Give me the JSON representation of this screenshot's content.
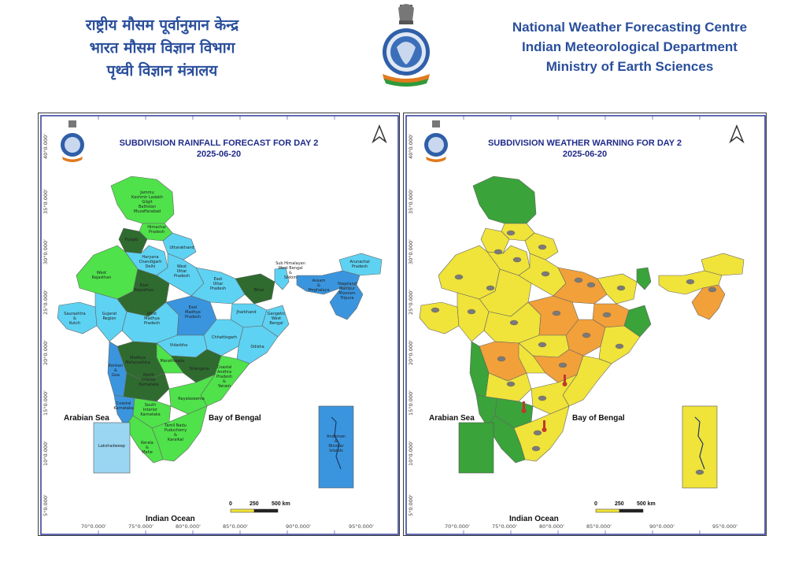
{
  "header": {
    "hindi_lines": [
      "राष्ट्रीय मौसम पूर्वानुमान केन्द्र",
      "भारत मौसम विज्ञान विभाग",
      "पृथ्वी विज्ञान मंत्रालय"
    ],
    "english_lines": [
      "National Weather Forecasting Centre",
      "Indian Meteorological Department",
      "Ministry of Earth Sciences"
    ]
  },
  "colors": {
    "title_blue": "#1f2a8a",
    "header_blue": "#2a4f9c",
    "light_green": "#4fe24a",
    "dark_green": "#2f6b2f",
    "light_blue": "#5ed2f2",
    "medium_blue": "#3a95de",
    "yellow": "#f0e33a",
    "orange": "#f2a03a",
    "warning_green": "#3aa33a"
  },
  "left_map": {
    "title": "SUBDIVISION RAINFALL FORECAST FOR DAY 2",
    "date": "2025-06-20",
    "arabian_sea": "Arabian Sea",
    "bay_of_bengal": "Bay of Bengal",
    "indian_ocean": "Indian Ocean",
    "lakshadweep": "Lakshadweep",
    "andaman": [
      "Andaman",
      "&",
      "Nicobar",
      "Islands"
    ],
    "scale_ticks": [
      "0",
      "250",
      "500 km"
    ],
    "lat_ticks": [
      "40°0.000'",
      "35°0.000'",
      "30°0.000'",
      "25°0.000'",
      "20°0.000'",
      "15°0.000'",
      "10°0.000'",
      "5°0.000'"
    ],
    "lon_ticks": [
      "70°0.000'",
      "75°0.000'",
      "80°0.000'",
      "85°0.000'",
      "90°0.000'",
      "95°0.000'"
    ],
    "regions": {
      "jk": [
        "Jammu",
        "Kashmir Ladakh",
        "Gilgit",
        "Baltistan",
        "Muzaffarabad"
      ],
      "hp": [
        "Himachal",
        "Pradesh"
      ],
      "punjab": "Punjab",
      "uk": "Uttarakhand",
      "hch": [
        "Haryana",
        "Chandigarh",
        "Delhi"
      ],
      "wup": [
        "West",
        "Uttar",
        "Pradesh"
      ],
      "eup": [
        "East",
        "Uttar",
        "Pradesh"
      ],
      "wraj": [
        "West",
        "Rajasthan"
      ],
      "eraj": [
        "East",
        "Rajasthan"
      ],
      "bihar": "Bihar",
      "shwb": [
        "Sub Himalayan",
        "West Bengal",
        "&",
        "Sikkim"
      ],
      "arunachal": [
        "Arunachal",
        "Pradesh"
      ],
      "am": [
        "Assam",
        "&",
        "Meghalaya"
      ],
      "nmmt": [
        "Nagaland",
        "Manipur",
        "Mizoram",
        "Tripura"
      ],
      "saurashtra": [
        "Saurashtra",
        "&",
        "Kutch"
      ],
      "guj": [
        "Gujarat",
        "Region"
      ],
      "wmp": [
        "West",
        "Madhya",
        "Pradesh"
      ],
      "emp": [
        "East",
        "Madhya",
        "Pradesh"
      ],
      "jharkhand": "Jharkhand",
      "gwb": [
        "Gangetic",
        "West",
        "Bengal"
      ],
      "chh": "Chhattisgarh",
      "odisha": "Odisha",
      "vidarbha": "Vidarbha",
      "mm": [
        "Madhya",
        "Maharashtra"
      ],
      "marathwada": "Marathwada",
      "konkan": [
        "Konkan",
        "&",
        "Goa"
      ],
      "nik": [
        "North",
        "Interior",
        "Karnataka"
      ],
      "telangana": "Telangana",
      "capy": [
        "Coastal",
        "Andhra",
        "Pradesh",
        "&",
        "Yanam"
      ],
      "rayalaseema": "Rayalaseema",
      "ck": [
        "Coastal",
        "Karnataka"
      ],
      "sik": [
        "South",
        "Interior",
        "Karnataka"
      ],
      "tn": [
        "Tamil Nadu",
        "Puducherry",
        "&",
        "Karaikal"
      ],
      "kerala": [
        "Kerala",
        "&",
        "Mahe"
      ]
    }
  },
  "right_map": {
    "title": "SUBDIVISION WEATHER WARNING FOR DAY 2",
    "date": "2025-06-20",
    "arabian_sea": "Arabian Sea",
    "bay_of_bengal": "Bay of Bengal",
    "indian_ocean": "Indian Ocean",
    "scale_ticks": [
      "0",
      "250",
      "500 km"
    ],
    "lat_ticks": [
      "40°0.000'",
      "35°0.000'",
      "30°0.000'",
      "25°0.000'",
      "20°0.000'",
      "15°0.000'",
      "10°0.000'",
      "5°0.000'"
    ],
    "lon_ticks": [
      "70°0.000'",
      "75°0.000'",
      "80°0.000'",
      "85°0.000'",
      "90°0.000'",
      "95°0.000'"
    ]
  }
}
